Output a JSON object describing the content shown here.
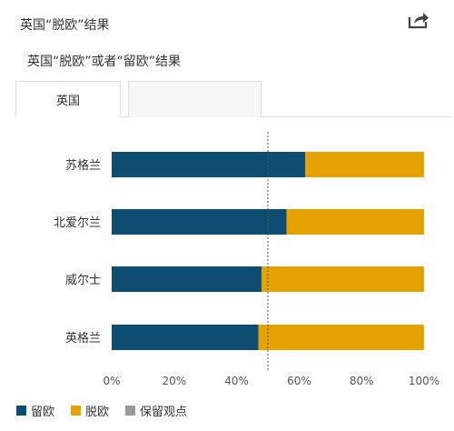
{
  "header": {
    "title": "英国“脱欧”结果",
    "share_icon": "share-icon"
  },
  "subtitle": "英国“脱欧”或者“留欧”结果",
  "tabs": [
    {
      "label": "英国",
      "active": true
    },
    {
      "label": "",
      "active": false
    }
  ],
  "colors": {
    "remain": "#0e4d72",
    "leave": "#e5a201",
    "undecided": "#9a9a9a",
    "reference": "#555555"
  },
  "chart_data": {
    "type": "bar",
    "orientation": "horizontal",
    "stacked": true,
    "categories": [
      "苏格兰",
      "北爱尔兰",
      "威尔士",
      "英格兰"
    ],
    "series": [
      {
        "name": "留欧",
        "values": [
          62,
          56,
          48,
          47
        ]
      },
      {
        "name": "脱欧",
        "values": [
          38,
          44,
          52,
          53
        ]
      },
      {
        "name": "保留观点",
        "values": [
          0,
          0,
          0,
          0
        ]
      }
    ],
    "xlim": [
      0,
      100
    ],
    "x_ticks": [
      "0%",
      "20%",
      "40%",
      "60%",
      "80%",
      "100%"
    ],
    "reference_line": 50,
    "legend_position": "bottom-left",
    "grid": false
  }
}
